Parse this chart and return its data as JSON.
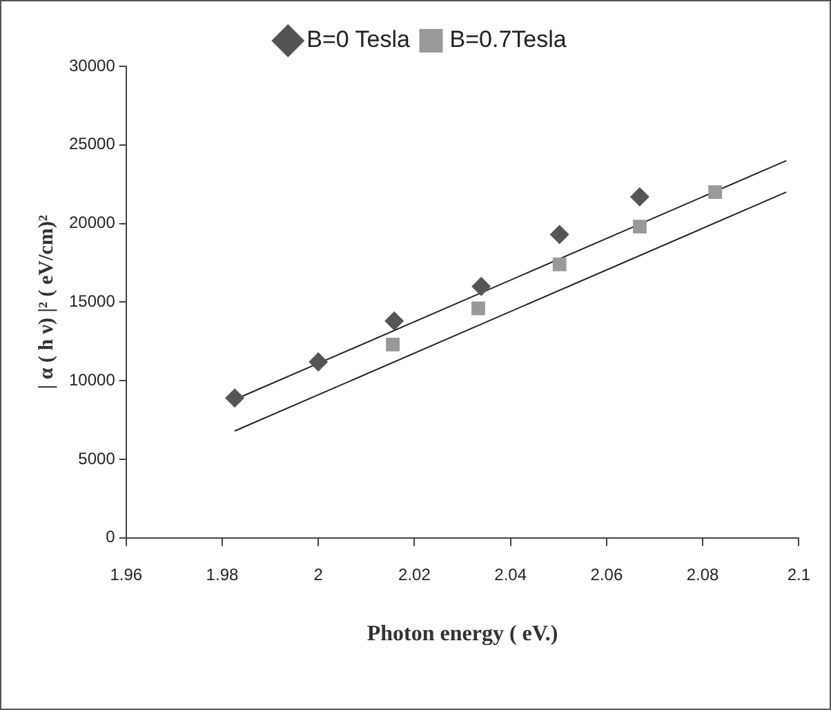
{
  "chart_data": {
    "type": "scatter",
    "xlabel": "Photon energy ( eV.)",
    "ylabel": "| α ( h ν) |² ( eV/cm)²",
    "xlim": [
      1.96,
      2.1
    ],
    "xticks": [
      1.96,
      1.98,
      2,
      2.02,
      2.04,
      2.06,
      2.08,
      2.1
    ],
    "ylim": [
      0,
      30000
    ],
    "yticks": [
      0,
      5000,
      10000,
      15000,
      20000,
      25000,
      30000
    ],
    "grid": false,
    "legend": "top",
    "series": [
      {
        "name": "B=0 Tesla",
        "color": "#555555",
        "marker": "diamond",
        "x": [
          1.9826,
          2.0,
          2.0158,
          2.0339,
          2.0502,
          2.0669
        ],
        "values": [
          8900,
          11200,
          13800,
          16000,
          19300,
          21700
        ]
      },
      {
        "name": "B=0.7Tesla",
        "color": "#999999",
        "marker": "square",
        "x": [
          2.0155,
          2.0333,
          2.0502,
          2.0669,
          2.0826
        ],
        "values": [
          12300,
          14600,
          17400,
          19800,
          22000
        ]
      },
      {
        "type": "line",
        "color": "#222222",
        "marker": "none",
        "x": [
          1.9826,
          2.0974
        ],
        "values": [
          8800,
          24000
        ]
      },
      {
        "type": "line",
        "color": "#222222",
        "marker": "none",
        "x": [
          1.9826,
          2.0974
        ],
        "values": [
          6800,
          22000
        ]
      }
    ]
  }
}
